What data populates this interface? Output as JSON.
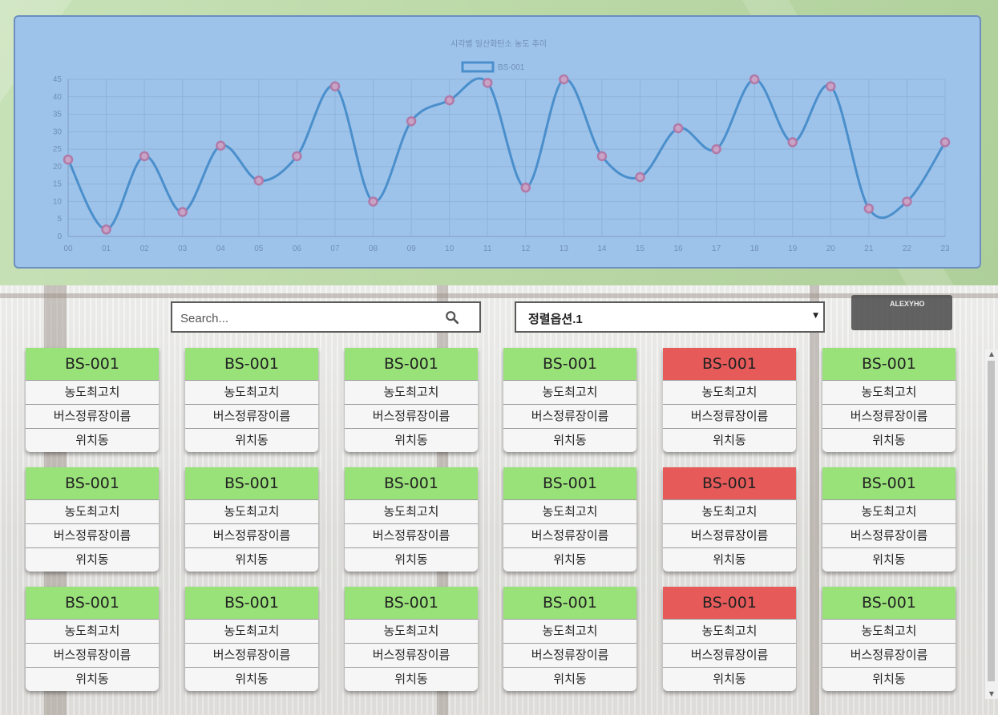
{
  "chart_data": {
    "type": "line",
    "title": "시각별 일산화탄소 농도 추이",
    "legend_position": "top-center",
    "grid": true,
    "categories": [
      "00",
      "01",
      "02",
      "03",
      "04",
      "05",
      "06",
      "07",
      "08",
      "09",
      "10",
      "11",
      "12",
      "13",
      "14",
      "15",
      "16",
      "17",
      "18",
      "19",
      "20",
      "21",
      "22",
      "23"
    ],
    "series": [
      {
        "name": "BS-001",
        "values": [
          22,
          2,
          23,
          7,
          26,
          16,
          23,
          43,
          10,
          33,
          39,
          44,
          14,
          45,
          23,
          17,
          31,
          25,
          45,
          27,
          43,
          8,
          10,
          27
        ]
      }
    ],
    "ylim": [
      0,
      45
    ],
    "yticks": [
      0,
      5,
      10,
      15,
      20,
      25,
      30,
      35,
      40,
      45
    ],
    "colors": {
      "line": "#4a8fcc",
      "point_border": "#b07aa8",
      "background": "#9ec3ea"
    }
  },
  "search": {
    "placeholder": "Search...",
    "icon": "search-icon"
  },
  "sort": {
    "selected": "정렬옵션.1"
  },
  "stations": [
    {
      "id": "BS-001",
      "level": "농도최고치",
      "name": "버스정류장이름",
      "location": "위치동",
      "alert": false
    },
    {
      "id": "BS-001",
      "level": "농도최고치",
      "name": "버스정류장이름",
      "location": "위치동",
      "alert": false
    },
    {
      "id": "BS-001",
      "level": "농도최고치",
      "name": "버스정류장이름",
      "location": "위치동",
      "alert": false
    },
    {
      "id": "BS-001",
      "level": "농도최고치",
      "name": "버스정류장이름",
      "location": "위치동",
      "alert": false
    },
    {
      "id": "BS-001",
      "level": "농도최고치",
      "name": "버스정류장이름",
      "location": "위치동",
      "alert": true
    },
    {
      "id": "BS-001",
      "level": "농도최고치",
      "name": "버스정류장이름",
      "location": "위치동",
      "alert": false
    },
    {
      "id": "BS-001",
      "level": "농도최고치",
      "name": "버스정류장이름",
      "location": "위치동",
      "alert": false
    },
    {
      "id": "BS-001",
      "level": "농도최고치",
      "name": "버스정류장이름",
      "location": "위치동",
      "alert": false
    },
    {
      "id": "BS-001",
      "level": "농도최고치",
      "name": "버스정류장이름",
      "location": "위치동",
      "alert": false
    },
    {
      "id": "BS-001",
      "level": "농도최고치",
      "name": "버스정류장이름",
      "location": "위치동",
      "alert": false
    },
    {
      "id": "BS-001",
      "level": "농도최고치",
      "name": "버스정류장이름",
      "location": "위치동",
      "alert": true
    },
    {
      "id": "BS-001",
      "level": "농도최고치",
      "name": "버스정류장이름",
      "location": "위치동",
      "alert": false
    },
    {
      "id": "BS-001",
      "level": "농도최고치",
      "name": "버스정류장이름",
      "location": "위치동",
      "alert": false
    },
    {
      "id": "BS-001",
      "level": "농도최고치",
      "name": "버스정류장이름",
      "location": "위치동",
      "alert": false
    },
    {
      "id": "BS-001",
      "level": "농도최고치",
      "name": "버스정류장이름",
      "location": "위치동",
      "alert": false
    },
    {
      "id": "BS-001",
      "level": "농도최고치",
      "name": "버스정류장이름",
      "location": "위치동",
      "alert": false
    },
    {
      "id": "BS-001",
      "level": "농도최고치",
      "name": "버스정류장이름",
      "location": "위치동",
      "alert": true
    },
    {
      "id": "BS-001",
      "level": "농도최고치",
      "name": "버스정류장이름",
      "location": "위치동",
      "alert": false
    }
  ],
  "colors": {
    "normal_header": "#99e27a",
    "alert_header": "#e65a5a"
  },
  "background_sign_text": "ALEXYHO"
}
